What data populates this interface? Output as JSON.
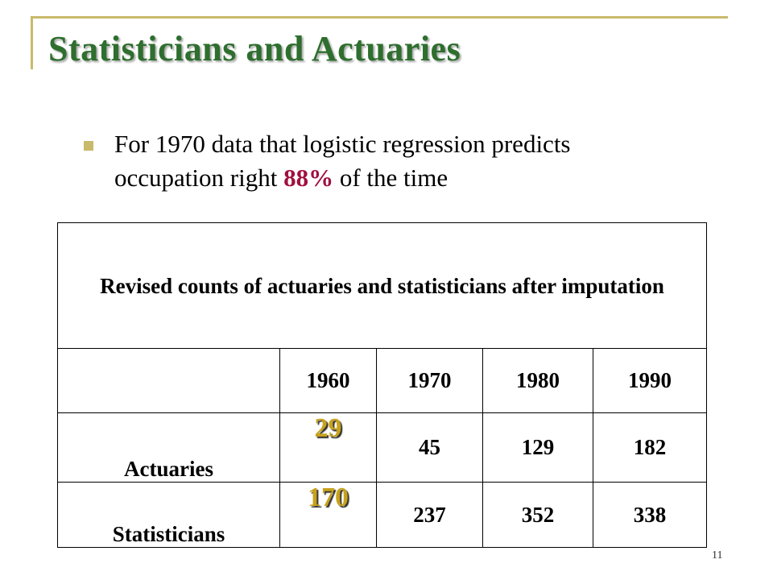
{
  "slide": {
    "title": "Statisticians and Actuaries",
    "bullet": {
      "before": "For 1970 data that logistic regression predicts occupation right ",
      "highlight": "88%",
      "after": " of the time"
    },
    "page_number": "11",
    "colors": {
      "title": "#2e6e2e",
      "accent": "#c9b96a",
      "highlight": "#a0103f",
      "imputed_value": "#c8a21a"
    }
  },
  "table": {
    "caption": "Revised counts of actuaries and statisticians after imputation",
    "years": [
      "1960",
      "1970",
      "1980",
      "1990"
    ],
    "rows": [
      {
        "label": "Actuaries",
        "values": [
          "29",
          "45",
          "129",
          "182"
        ]
      },
      {
        "label": "Statisticians",
        "values": [
          "170",
          "237",
          "352",
          "338"
        ]
      }
    ]
  }
}
